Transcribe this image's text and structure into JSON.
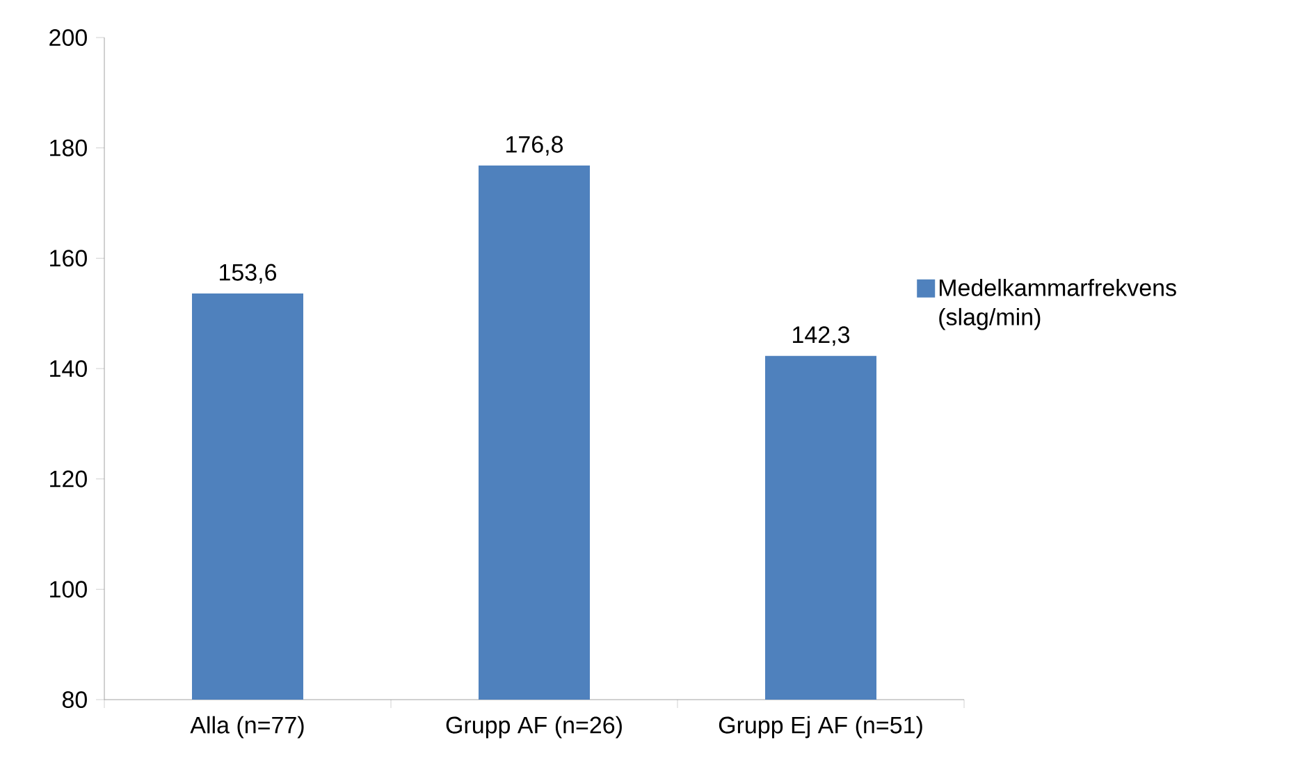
{
  "chart_data": {
    "type": "bar",
    "categories": [
      "Alla (n=77)",
      "Grupp AF (n=26)",
      "Grupp Ej AF (n=51)"
    ],
    "series": [
      {
        "name": "Medelkammarfrekvens (slag/min)",
        "color": "#4f81bd",
        "values": [
          153.6,
          176.8,
          142.3
        ],
        "value_labels": [
          "153,6",
          "176,8",
          "142,3"
        ]
      }
    ],
    "ylim": [
      80,
      200
    ],
    "yticks": [
      80,
      100,
      120,
      140,
      160,
      180,
      200
    ],
    "grid": false,
    "legend": "right"
  }
}
